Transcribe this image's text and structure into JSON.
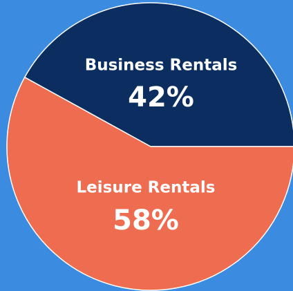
{
  "chart_data": {
    "type": "pie",
    "categories": [
      "Business Rentals",
      "Leisure Rentals"
    ],
    "values": [
      42,
      58
    ],
    "value_labels": [
      "42%",
      "58%"
    ],
    "colors": [
      "#0b2d5f",
      "#ee6d51"
    ]
  }
}
